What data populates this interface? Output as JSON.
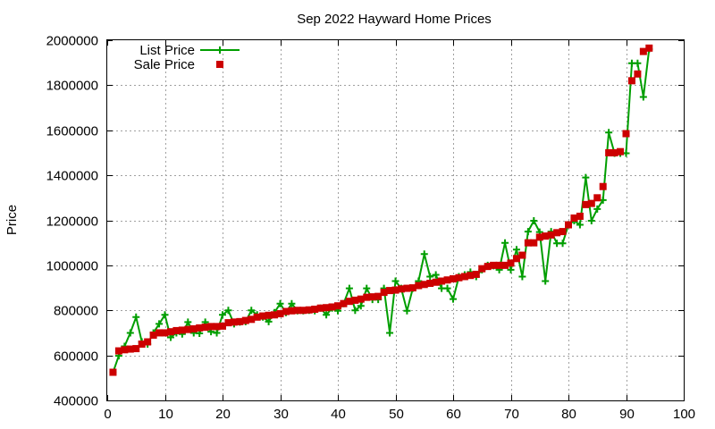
{
  "chart_data": {
    "type": "line",
    "title": "Sep 2022 Hayward Home Prices",
    "xlabel": "",
    "ylabel": "Price",
    "xlim": [
      0,
      100
    ],
    "ylim": [
      400000,
      2000000
    ],
    "xticks": [
      "0",
      "10",
      "20",
      "30",
      "40",
      "50",
      "60",
      "70",
      "80",
      "90",
      "100"
    ],
    "yticks": [
      "400000",
      "600000",
      "800000",
      "1000000",
      "1200000",
      "1400000",
      "1600000",
      "1800000",
      "2000000"
    ],
    "grid": true,
    "legend": "top-left",
    "series": [
      {
        "name": "List Price",
        "color": "#009e00",
        "marker": "plus",
        "line": true,
        "x": [
          1,
          2,
          3,
          4,
          5,
          6,
          7,
          8,
          9,
          10,
          11,
          12,
          13,
          14,
          15,
          16,
          17,
          18,
          19,
          20,
          21,
          22,
          23,
          24,
          25,
          26,
          27,
          28,
          29,
          30,
          31,
          32,
          33,
          34,
          35,
          36,
          37,
          38,
          39,
          40,
          41,
          42,
          43,
          44,
          45,
          46,
          47,
          48,
          49,
          50,
          51,
          52,
          53,
          54,
          55,
          56,
          57,
          58,
          59,
          60,
          61,
          62,
          63,
          64,
          65,
          66,
          67,
          68,
          69,
          70,
          71,
          72,
          73,
          74,
          75,
          76,
          77,
          78,
          79,
          80,
          81,
          82,
          83,
          84,
          85,
          86,
          87,
          88,
          89,
          90,
          91,
          92,
          93,
          94
        ],
        "values": [
          525000,
          598000,
          640000,
          700000,
          770000,
          660000,
          650000,
          700000,
          740000,
          780000,
          680000,
          700000,
          695000,
          748000,
          700000,
          698000,
          748000,
          705000,
          700000,
          780000,
          800000,
          740000,
          748000,
          750000,
          800000,
          780000,
          770000,
          750000,
          790000,
          830000,
          790000,
          830000,
          798000,
          798000,
          800000,
          798000,
          810000,
          780000,
          810000,
          798000,
          830000,
          898000,
          800000,
          820000,
          898000,
          848000,
          848000,
          898000,
          700000,
          930000,
          898000,
          798000,
          898000,
          930000,
          1050000,
          950000,
          958000,
          898000,
          898000,
          850000,
          950000,
          958000,
          970000,
          950000,
          980000,
          1000000,
          998000,
          980000,
          1100000,
          980000,
          1070000,
          950000,
          1150000,
          1198000,
          1148000,
          930000,
          1150000,
          1098000,
          1098000,
          1180000,
          1198000,
          1180000,
          1390000,
          1198000,
          1250000,
          1290000,
          1590000,
          1498000,
          1498000,
          1498000,
          1898000,
          1898000,
          1748000,
          1960000
        ]
      },
      {
        "name": "Sale Price",
        "color": "#cc0000",
        "marker": "square",
        "line": false,
        "x": [
          1,
          2,
          3,
          4,
          5,
          6,
          7,
          8,
          9,
          10,
          11,
          12,
          13,
          14,
          15,
          16,
          17,
          18,
          19,
          20,
          21,
          22,
          23,
          24,
          25,
          26,
          27,
          28,
          29,
          30,
          31,
          32,
          33,
          34,
          35,
          36,
          37,
          38,
          39,
          40,
          41,
          42,
          43,
          44,
          45,
          46,
          47,
          48,
          49,
          50,
          51,
          52,
          53,
          54,
          55,
          56,
          57,
          58,
          59,
          60,
          61,
          62,
          63,
          64,
          65,
          66,
          67,
          68,
          69,
          70,
          71,
          72,
          73,
          74,
          75,
          76,
          77,
          78,
          79,
          80,
          81,
          82,
          83,
          84,
          85,
          86,
          87,
          88,
          89,
          90,
          91,
          92,
          93,
          94
        ],
        "values": [
          525000,
          620000,
          625000,
          628000,
          630000,
          650000,
          660000,
          690000,
          700000,
          700000,
          705000,
          710000,
          712000,
          715000,
          718000,
          722000,
          725000,
          728000,
          728000,
          730000,
          745000,
          748000,
          750000,
          755000,
          760000,
          770000,
          775000,
          778000,
          780000,
          785000,
          795000,
          798000,
          800000,
          800000,
          802000,
          805000,
          810000,
          812000,
          815000,
          820000,
          830000,
          840000,
          845000,
          850000,
          858000,
          860000,
          862000,
          880000,
          888000,
          890000,
          895000,
          898000,
          900000,
          910000,
          915000,
          920000,
          925000,
          930000,
          935000,
          940000,
          945000,
          950000,
          955000,
          960000,
          985000,
          995000,
          1000000,
          1000000,
          1000000,
          1010000,
          1030000,
          1045000,
          1100000,
          1100000,
          1125000,
          1130000,
          1135000,
          1145000,
          1150000,
          1180000,
          1210000,
          1218000,
          1270000,
          1275000,
          1300000,
          1350000,
          1500000,
          1500000,
          1505000,
          1585000,
          1820000,
          1850000,
          1950000,
          1965000
        ]
      }
    ]
  }
}
